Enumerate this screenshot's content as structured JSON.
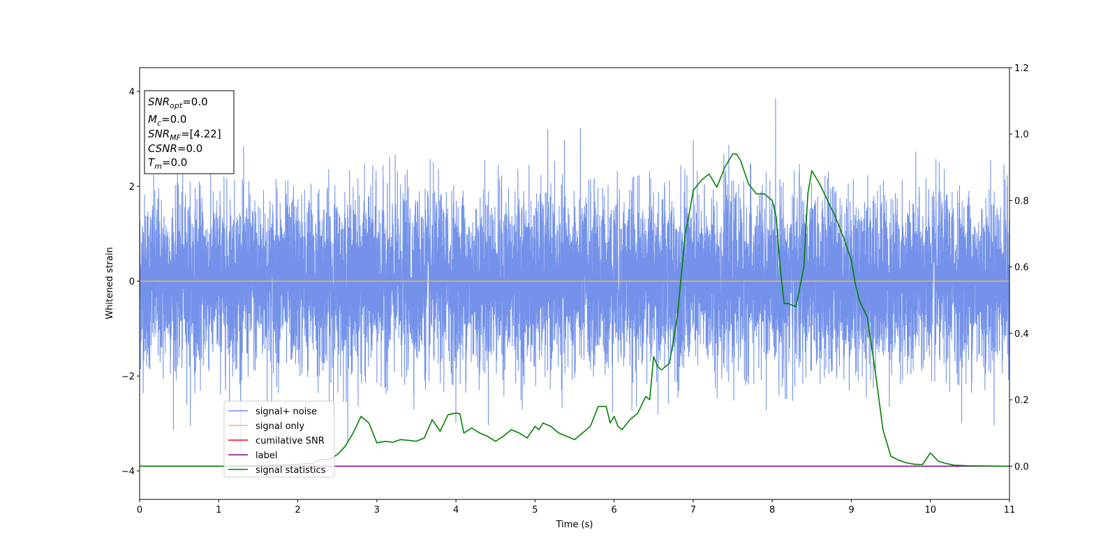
{
  "chart_data": {
    "type": "line",
    "xlabel": "Time (s)",
    "ylabel": "Whitened strain",
    "xlim": [
      0,
      11
    ],
    "ylim_left": [
      -4.6,
      4.5
    ],
    "ylim_right": [
      -0.1,
      1.2
    ],
    "x_ticks": [
      0,
      1,
      2,
      3,
      4,
      5,
      6,
      7,
      8,
      9,
      10,
      11
    ],
    "y_ticks_left": [
      -4,
      -2,
      0,
      2,
      4
    ],
    "y_ticks_right": [
      0.0,
      0.2,
      0.4,
      0.6,
      0.8,
      1.0,
      1.2
    ],
    "y_tick_labels_right": [
      "0.0",
      "0.2",
      "0.4",
      "0.6",
      "0.8",
      "1.0",
      "1.2"
    ],
    "grid": false,
    "legend_position": "lower-left",
    "annotation_box": {
      "position": "top-left",
      "lines": [
        {
          "base": "SNR",
          "sub": "opt",
          "value": "=0.0"
        },
        {
          "base": "M",
          "sub": "c",
          "value": "=0.0"
        },
        {
          "base": "SNR",
          "sub": "MF",
          "value": "=[4.22]"
        },
        {
          "base": "CSNR",
          "sub": "",
          "value": "=0.0"
        },
        {
          "base": "T",
          "sub": "m",
          "value": "=0.0"
        }
      ]
    },
    "series": [
      {
        "name": "signal+ noise",
        "color": "#6d8ce8",
        "axis": "left",
        "style": "noise band",
        "typical_std": 0.9,
        "approx_range": [
          -4.2,
          4.1
        ],
        "sample_rate_hz": 2048
      },
      {
        "name": "signal only",
        "color": "#f5b461",
        "axis": "left",
        "x": [
          0,
          11
        ],
        "y": [
          0.0,
          0.0
        ]
      },
      {
        "name": "cumilative SNR",
        "color": "#ff0000",
        "axis": "right",
        "x": [],
        "y": []
      },
      {
        "name": "label",
        "color": "#800080",
        "axis": "right",
        "x": [
          0,
          11
        ],
        "y": [
          0.0,
          0.0
        ]
      },
      {
        "name": "signal statistics",
        "color": "#008000",
        "axis": "right",
        "x": [
          0,
          1.0,
          1.5,
          2.0,
          2.2,
          2.3,
          2.4,
          2.5,
          2.6,
          2.7,
          2.8,
          2.9,
          3.0,
          3.1,
          3.2,
          3.3,
          3.4,
          3.5,
          3.6,
          3.7,
          3.8,
          3.9,
          4.0,
          4.05,
          4.1,
          4.2,
          4.3,
          4.4,
          4.5,
          4.6,
          4.7,
          4.8,
          4.9,
          5.0,
          5.05,
          5.1,
          5.2,
          5.3,
          5.4,
          5.5,
          5.6,
          5.7,
          5.8,
          5.9,
          5.95,
          6.0,
          6.05,
          6.1,
          6.2,
          6.3,
          6.4,
          6.45,
          6.5,
          6.55,
          6.6,
          6.7,
          6.8,
          6.9,
          6.95,
          7.0,
          7.1,
          7.2,
          7.3,
          7.4,
          7.5,
          7.55,
          7.6,
          7.7,
          7.8,
          7.9,
          8.0,
          8.05,
          8.1,
          8.15,
          8.2,
          8.3,
          8.4,
          8.45,
          8.5,
          8.6,
          8.7,
          8.8,
          8.9,
          9.0,
          9.05,
          9.1,
          9.2,
          9.3,
          9.4,
          9.5,
          9.6,
          9.7,
          9.8,
          9.9,
          10.0,
          10.1,
          10.2,
          10.3,
          10.5,
          11.0
        ],
        "y": [
          0.0,
          0.0,
          0.002,
          0.005,
          0.01,
          0.02,
          0.02,
          0.035,
          0.06,
          0.1,
          0.15,
          0.13,
          0.07,
          0.075,
          0.072,
          0.08,
          0.078,
          0.075,
          0.085,
          0.14,
          0.105,
          0.155,
          0.16,
          0.158,
          0.1,
          0.115,
          0.1,
          0.09,
          0.075,
          0.09,
          0.11,
          0.1,
          0.085,
          0.12,
          0.11,
          0.13,
          0.12,
          0.1,
          0.09,
          0.08,
          0.1,
          0.12,
          0.18,
          0.18,
          0.13,
          0.15,
          0.12,
          0.11,
          0.14,
          0.16,
          0.21,
          0.2,
          0.33,
          0.3,
          0.29,
          0.31,
          0.45,
          0.7,
          0.76,
          0.83,
          0.86,
          0.88,
          0.84,
          0.9,
          0.94,
          0.94,
          0.92,
          0.85,
          0.82,
          0.82,
          0.8,
          0.75,
          0.6,
          0.49,
          0.49,
          0.48,
          0.6,
          0.82,
          0.89,
          0.85,
          0.8,
          0.75,
          0.69,
          0.62,
          0.55,
          0.5,
          0.45,
          0.29,
          0.11,
          0.03,
          0.018,
          0.01,
          0.006,
          0.005,
          0.04,
          0.015,
          0.008,
          0.003,
          0.001,
          0.0
        ]
      }
    ]
  }
}
